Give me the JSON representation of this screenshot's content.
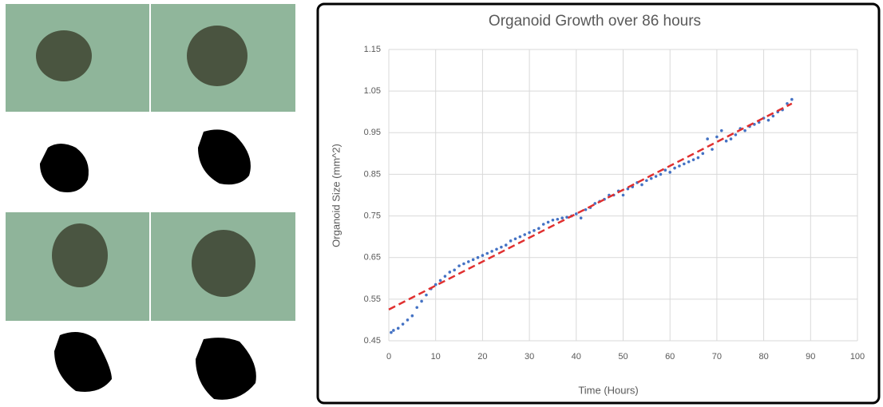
{
  "chart_data": {
    "type": "scatter",
    "title": "Organoid Growth over 86 hours",
    "x_label": "Time (Hours)",
    "y_label": "Organoid Size (mm^2)",
    "xlim": [
      0,
      100
    ],
    "xticks": [
      0,
      10,
      20,
      30,
      40,
      50,
      60,
      70,
      80,
      90,
      100
    ],
    "ylim": [
      0.45,
      1.15
    ],
    "yticks": [
      0.45,
      0.55,
      0.65,
      0.75,
      0.85,
      0.95,
      1.05,
      1.15
    ],
    "grid": true,
    "series": [
      {
        "type": "scatter",
        "color": "#4472c4",
        "x": [
          0.5,
          1,
          2,
          3,
          4,
          5,
          6,
          7,
          8,
          9,
          10,
          11,
          12,
          13,
          14,
          15,
          16,
          17,
          18,
          19,
          20,
          21,
          22,
          23,
          24,
          25,
          26,
          27,
          28,
          29,
          30,
          31,
          32,
          33,
          34,
          35,
          36,
          37,
          38,
          39,
          40,
          41,
          42,
          43,
          44,
          45,
          46,
          47,
          48,
          49,
          50,
          51,
          52,
          53,
          54,
          55,
          56,
          57,
          58,
          59,
          60,
          61,
          62,
          63,
          64,
          65,
          66,
          67,
          68,
          69,
          70,
          71,
          72,
          73,
          74,
          75,
          76,
          77,
          78,
          79,
          80,
          81,
          82,
          83,
          84,
          85,
          86
        ],
        "values": [
          0.47,
          0.475,
          0.48,
          0.49,
          0.5,
          0.51,
          0.53,
          0.545,
          0.56,
          0.575,
          0.585,
          0.595,
          0.605,
          0.615,
          0.62,
          0.63,
          0.635,
          0.64,
          0.645,
          0.65,
          0.655,
          0.66,
          0.665,
          0.67,
          0.675,
          0.68,
          0.69,
          0.695,
          0.7,
          0.705,
          0.71,
          0.715,
          0.72,
          0.73,
          0.735,
          0.74,
          0.742,
          0.745,
          0.747,
          0.75,
          0.755,
          0.745,
          0.765,
          0.77,
          0.78,
          0.785,
          0.79,
          0.8,
          0.8,
          0.81,
          0.8,
          0.815,
          0.82,
          0.83,
          0.825,
          0.835,
          0.84,
          0.845,
          0.85,
          0.86,
          0.855,
          0.865,
          0.87,
          0.875,
          0.88,
          0.885,
          0.89,
          0.9,
          0.935,
          0.91,
          0.94,
          0.955,
          0.93,
          0.935,
          0.945,
          0.96,
          0.955,
          0.965,
          0.97,
          0.975,
          0.985,
          0.98,
          0.99,
          1.0,
          1.005,
          1.02,
          1.03
        ]
      },
      {
        "type": "line",
        "dashed": true,
        "color": "#e03030",
        "x": [
          0,
          86
        ],
        "values": [
          0.525,
          1.02
        ]
      }
    ]
  }
}
